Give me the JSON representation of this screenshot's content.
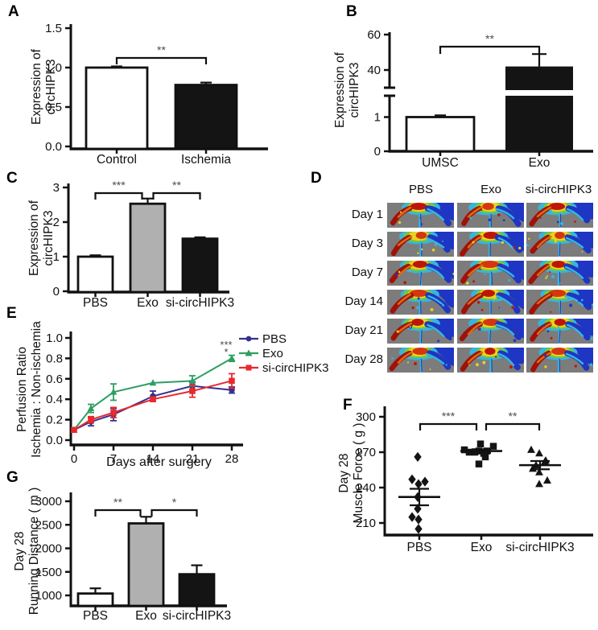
{
  "panels": {
    "a": {
      "label": "A",
      "ylabel_line1": "Expression of",
      "ylabel_line2": "circHIPK3"
    },
    "b": {
      "label": "B",
      "ylabel_line1": "Expression of",
      "ylabel_line2": "circHIPK3"
    },
    "c": {
      "label": "C",
      "ylabel_line1": "Expression of",
      "ylabel_line2": "circHIPK3"
    },
    "d": {
      "label": "D"
    },
    "e": {
      "label": "E",
      "ylabel_line1": "Perfusion Ratio",
      "ylabel_line2": "Ischemia : Non-ischemia"
    },
    "f": {
      "label": "F",
      "ylabel_line1": "Day 28",
      "ylabel_line2": "Muscle Force ( g )"
    },
    "g": {
      "label": "G",
      "ylabel_line1": "Day 28",
      "ylabel_line2": "Running Distance ( m )"
    }
  },
  "colors": {
    "axis": "#111111",
    "bar_white": "#ffffff",
    "bar_gray": "#b0b0b0",
    "bar_black": "#141414",
    "sig": "#4d4d4d",
    "pbs": "#35308f",
    "exo": "#2f9e62",
    "si": "#e8292d",
    "doppler_bg": "#7c7c7c"
  },
  "chart_data": [
    {
      "panel": "A",
      "type": "bar",
      "ylabel": "Expression of circHIPK3",
      "categories": [
        "Control",
        "Ischemia"
      ],
      "values": [
        1.0,
        0.78
      ],
      "errors": [
        0.015,
        0.03
      ],
      "bar_fills": [
        "white",
        "black"
      ],
      "ytick_values": [
        0,
        0.5,
        1.0,
        1.5
      ],
      "ytick_labels": [
        "0.0",
        "0.5",
        "1.0",
        "1.5"
      ],
      "ylim": [
        0,
        1.5
      ],
      "significance": [
        {
          "between": [
            "Control",
            "Ischemia"
          ],
          "label": "**"
        }
      ]
    },
    {
      "panel": "B",
      "type": "bar",
      "broken_axis": true,
      "ylabel": "Expression of circHIPK3",
      "categories": [
        "UMSC",
        "Exo"
      ],
      "values": [
        1.0,
        42
      ],
      "errors": [
        0.05,
        7
      ],
      "bar_fills": [
        "white",
        "black"
      ],
      "yticks_lower_values": [
        0,
        1
      ],
      "yticks_lower_labels": [
        "0",
        "1"
      ],
      "yticks_upper_values": [
        40,
        60
      ],
      "yticks_upper_labels": [
        "40",
        "60"
      ],
      "significance": [
        {
          "between": [
            "UMSC",
            "Exo"
          ],
          "label": "**"
        }
      ]
    },
    {
      "panel": "C",
      "type": "bar",
      "ylabel": "Expression of circHIPK3",
      "categories": [
        "PBS",
        "Exo",
        "si-circHIPK3"
      ],
      "values": [
        1.0,
        2.53,
        1.52
      ],
      "errors": [
        0.04,
        0.15,
        0.04
      ],
      "bar_fills": [
        "white",
        "gray",
        "black"
      ],
      "ytick_values": [
        0,
        1,
        2,
        3
      ],
      "ytick_labels": [
        "0",
        "1",
        "2",
        "3"
      ],
      "ylim": [
        0,
        3
      ],
      "significance": [
        {
          "between": [
            "PBS",
            "Exo"
          ],
          "label": "***"
        },
        {
          "between": [
            "Exo",
            "si-circHIPK3"
          ],
          "label": "**"
        }
      ]
    },
    {
      "panel": "D",
      "type": "image-grid",
      "columns": [
        "PBS",
        "Exo",
        "si-circHIPK3"
      ],
      "rows": [
        "Day 1",
        "Day 3",
        "Day 7",
        "Day 14",
        "Day 21",
        "Day 28"
      ],
      "description": "Laser Doppler perfusion images of mouse hindlimbs"
    },
    {
      "panel": "E",
      "type": "line",
      "xlabel": "Days after surgery",
      "ylabel": "Perfusion Ratio Ischemia : Non-ischemia",
      "x": [
        0,
        3,
        7,
        14,
        21,
        28
      ],
      "xtick_values": [
        0,
        7,
        14,
        21,
        28
      ],
      "xtick_labels": [
        "0",
        "7",
        "14",
        "21",
        "28"
      ],
      "ytick_values": [
        0,
        0.2,
        0.4,
        0.6,
        0.8,
        1.0
      ],
      "ytick_labels": [
        "0.0",
        "0.2",
        "0.4",
        "0.6",
        "0.8",
        "1.0"
      ],
      "ylim": [
        0,
        1.0
      ],
      "series": [
        {
          "name": "PBS",
          "marker": "circle",
          "color_key": "pbs",
          "values": [
            0.1,
            0.18,
            0.25,
            0.43,
            0.53,
            0.49
          ],
          "errors": [
            0.01,
            0.04,
            0.06,
            0.05,
            0.04,
            0.03
          ]
        },
        {
          "name": "Exo",
          "marker": "triangle",
          "color_key": "exo",
          "values": [
            0.1,
            0.31,
            0.47,
            0.56,
            0.58,
            0.8
          ],
          "errors": [
            0.01,
            0.04,
            0.08,
            0.01,
            0.05,
            0.03
          ]
        },
        {
          "name": "si-circHIPK3",
          "marker": "square",
          "color_key": "si",
          "values": [
            0.1,
            0.2,
            0.27,
            0.4,
            0.48,
            0.58
          ],
          "errors": [
            0.01,
            0.03,
            0.05,
            0.02,
            0.06,
            0.07
          ]
        }
      ],
      "annotations": [
        {
          "day": 28,
          "lines": [
            "***",
            "*"
          ]
        }
      ]
    },
    {
      "panel": "F",
      "type": "scatter",
      "ylabel": "Day 28 Muscle Force ( g )",
      "categories": [
        "PBS",
        "Exo",
        "si-circHIPK3"
      ],
      "ytick_values": [
        210,
        240,
        270,
        300
      ],
      "ytick_labels": [
        "210",
        "240",
        "270",
        "300"
      ],
      "ylim": [
        200,
        300
      ],
      "groups": [
        {
          "name": "PBS",
          "marker": "diamond",
          "mean": 232,
          "sem": 7,
          "values": [
            266,
            247,
            245,
            243,
            232,
            222,
            215,
            213,
            205
          ],
          "x_offsets": [
            -2,
            -9,
            7,
            -1,
            -2,
            -2,
            -9,
            -1,
            -1
          ]
        },
        {
          "name": "Exo",
          "marker": "square",
          "mean": 271,
          "sem": 1.5,
          "values": [
            277,
            275,
            272,
            271,
            271,
            270,
            270,
            269,
            266,
            260
          ],
          "x_offsets": [
            -1,
            15,
            -21,
            -3,
            7,
            -15,
            -8,
            3,
            5,
            -3
          ]
        },
        {
          "name": "si-circHIPK3",
          "marker": "triangle",
          "mean": 259,
          "sem": 3.5,
          "values": [
            272,
            269,
            263,
            262,
            259,
            256,
            253,
            246,
            243
          ],
          "x_offsets": [
            -11,
            -1,
            7,
            6,
            -5,
            -9,
            -1,
            9,
            -1
          ]
        }
      ],
      "significance": [
        {
          "between": [
            "PBS",
            "Exo"
          ],
          "label": "***"
        },
        {
          "between": [
            "Exo",
            "si-circHIPK3"
          ],
          "label": "**"
        }
      ]
    },
    {
      "panel": "G",
      "type": "bar",
      "ylabel": "Day 28 Running Distance ( m )",
      "categories": [
        "PBS",
        "Exo",
        "si-circHIPK3"
      ],
      "values": [
        1040,
        2530,
        1450
      ],
      "errors": [
        110,
        140,
        190
      ],
      "bar_fills": [
        "white",
        "gray",
        "black"
      ],
      "ytick_values": [
        1000,
        1500,
        2000,
        2500,
        3000
      ],
      "ytick_labels": [
        "1000",
        "1500",
        "2000",
        "2500",
        "3000"
      ],
      "ylim": [
        780,
        3000
      ],
      "significance": [
        {
          "between": [
            "PBS",
            "Exo"
          ],
          "label": "**"
        },
        {
          "between": [
            "Exo",
            "si-circHIPK3"
          ],
          "label": "*"
        }
      ]
    }
  ]
}
